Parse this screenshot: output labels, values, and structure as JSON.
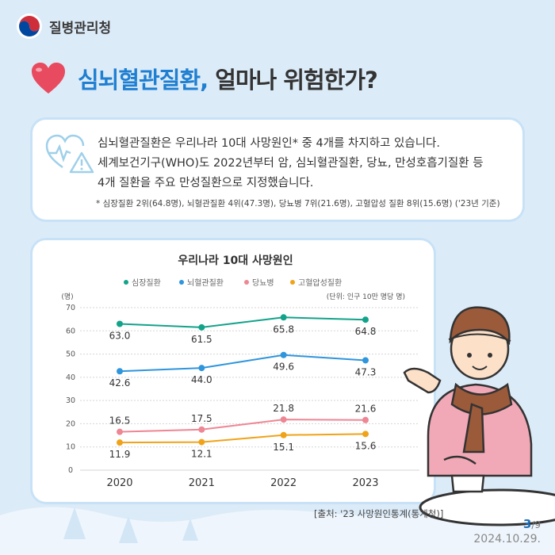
{
  "org": {
    "name": "질병관리청"
  },
  "title": {
    "highlight": "심뇌혈관질환,",
    "rest": " 얼마나 위험한가?"
  },
  "info": {
    "line1": "심뇌혈관질환은 우리나라 10대 사망원인* 중 4개를 차지하고 있습니다.",
    "line2": "세계보건기구(WHO)도 2022년부터 암, 심뇌혈관질환, 당뇨, 만성호흡기질환 등",
    "line3": "4개 질환을 주요 만성질환으로 지정했습니다.",
    "note": "* 심장질환 2위(64.8명), 뇌혈관질환 4위(47.3명), 당뇨병 7위(21.6명), 고혈압성 질환 8위(15.6명) ('23년 기준)"
  },
  "chart_data": {
    "type": "line",
    "title": "우리나라 10대 사망원인",
    "ylabel": "(명)",
    "unit_note": "(단위: 인구 10만 명당 명)",
    "x": [
      "2020",
      "2021",
      "2022",
      "2023"
    ],
    "ylim": [
      0,
      70
    ],
    "yticks": [
      "0",
      "10",
      "20",
      "30",
      "40",
      "50",
      "60",
      "70"
    ],
    "grid": true,
    "legend_position": "top",
    "series": [
      {
        "name": "심장질환",
        "color": "#13a38a",
        "values": [
          63.0,
          61.5,
          65.8,
          64.8
        ],
        "labels": [
          "63.0",
          "61.5",
          "65.8",
          "64.8"
        ]
      },
      {
        "name": "뇌혈관질환",
        "color": "#2f95dc",
        "values": [
          42.6,
          44.0,
          49.6,
          47.3
        ],
        "labels": [
          "42.6",
          "44.0",
          "49.6",
          "47.3"
        ]
      },
      {
        "name": "당뇨병",
        "color": "#ee8694",
        "values": [
          16.5,
          17.5,
          21.8,
          21.6
        ],
        "labels": [
          "16.5",
          "17.5",
          "21.8",
          "21.6"
        ]
      },
      {
        "name": "고혈압성질환",
        "color": "#f0a319",
        "values": [
          11.9,
          12.1,
          15.1,
          15.6
        ],
        "labels": [
          "11.9",
          "12.1",
          "15.1",
          "15.6"
        ]
      }
    ]
  },
  "source": "[출처: '23 사망원인통계(통계청)]",
  "page": {
    "current": "3",
    "total": "/9"
  },
  "date": "2024.10.29.",
  "colors": {
    "accent": "#1f7fd1",
    "background": "#dcebf8",
    "heart": "#e84a5f"
  },
  "icons": {
    "logo": "korea-taegeuk-logo",
    "heart": "heart-icon",
    "info": "heart-warning-icon"
  }
}
